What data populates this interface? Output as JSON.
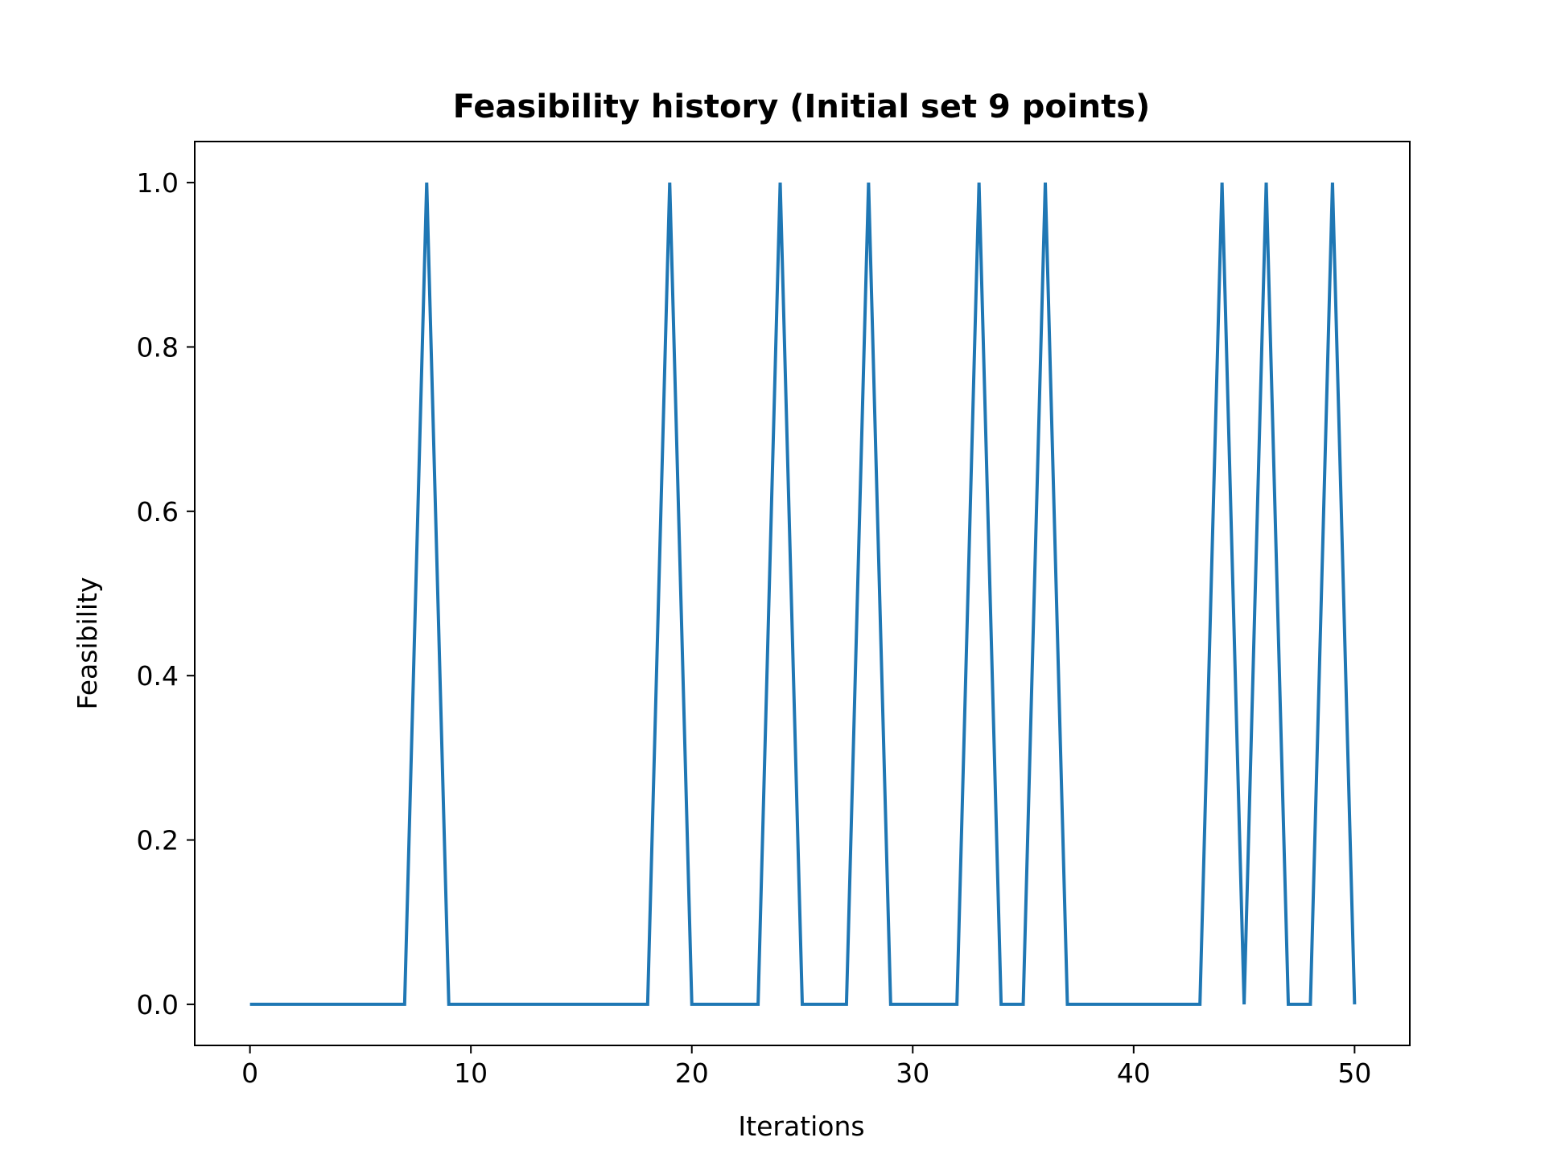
{
  "chart_data": {
    "type": "line",
    "title": "Feasibility history (Initial set 9 points)",
    "xlabel": "Iterations",
    "ylabel": "Feasibility",
    "xlim": [
      -2.5,
      52.5
    ],
    "ylim": [
      -0.05,
      1.05
    ],
    "xticks": [
      0,
      10,
      20,
      30,
      40,
      50
    ],
    "xtick_labels": [
      "0",
      "10",
      "20",
      "30",
      "40",
      "50"
    ],
    "yticks": [
      0.0,
      0.2,
      0.4,
      0.6,
      0.8,
      1.0
    ],
    "ytick_labels": [
      "0.0",
      "0.2",
      "0.4",
      "0.6",
      "0.8",
      "1.0"
    ],
    "grid": false,
    "series": [
      {
        "color": "#1f77b4",
        "x": [
          0,
          1,
          2,
          3,
          4,
          5,
          6,
          7,
          8,
          9,
          10,
          11,
          12,
          13,
          14,
          15,
          16,
          17,
          18,
          19,
          20,
          21,
          22,
          23,
          24,
          25,
          26,
          27,
          28,
          29,
          30,
          31,
          32,
          33,
          34,
          35,
          36,
          37,
          38,
          39,
          40,
          41,
          42,
          43,
          44,
          45,
          46,
          47,
          48,
          49,
          50
        ],
        "values": [
          0,
          0,
          0,
          0,
          0,
          0,
          0,
          0,
          1,
          0,
          0,
          0,
          0,
          0,
          0,
          0,
          0,
          0,
          0,
          1,
          0,
          0,
          0,
          0,
          1,
          0,
          0,
          0,
          1,
          0,
          0,
          0,
          0,
          1,
          0,
          0,
          1,
          0,
          0,
          0,
          0,
          0,
          0,
          0,
          1,
          0,
          1,
          0,
          0,
          1,
          0
        ]
      }
    ]
  }
}
